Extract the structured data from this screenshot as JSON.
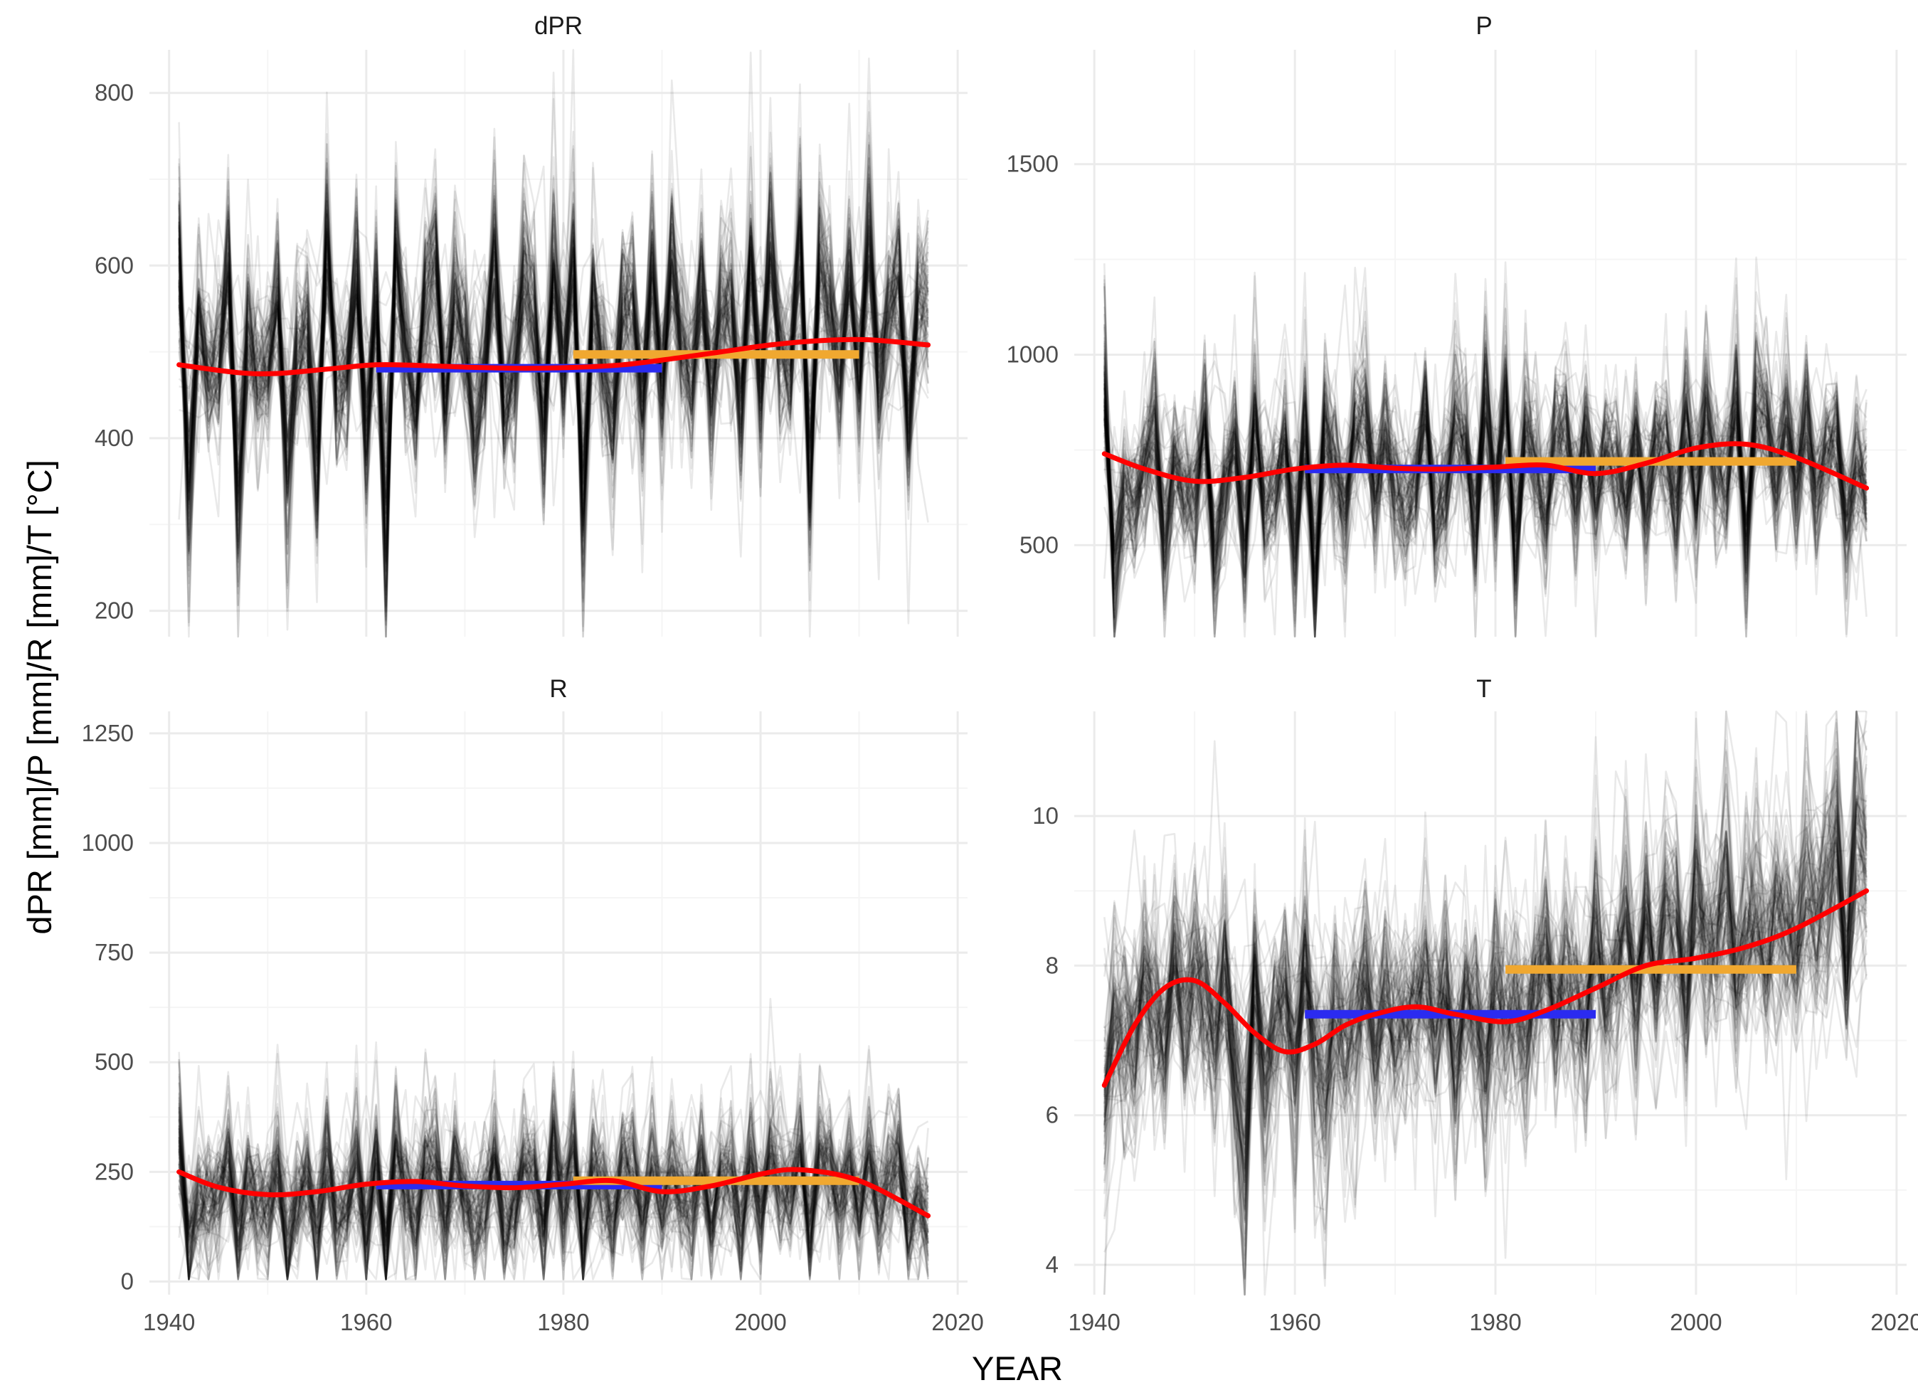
{
  "chart_data": {
    "type": "line",
    "xlabel": "YEAR",
    "ylabel": "dPR [mm]/P [mm]/R [mm]/T [°C]",
    "xlim": [
      1938,
      2021
    ],
    "x_ticks": [
      1940,
      1960,
      1980,
      2000,
      2020
    ],
    "x_tick_labels": [
      "1940",
      "1960",
      "1980",
      "2000",
      "2020"
    ],
    "years_range": [
      1941,
      2017
    ],
    "ensemble_members_approx": 100,
    "series_legend": {
      "ensemble": "individual ensemble members (semi-transparent black lines)",
      "smooth": "smoothed ensemble mean (red)",
      "ref_1961_1990": "1961–1990 mean (blue)",
      "ref_1981_2010": "1981–2010 mean (orange)"
    },
    "colors": {
      "ensemble": "#000000",
      "smooth": "#ff0000",
      "ref_1961_1990": "#2b2bf0",
      "ref_1981_2010": "#f0a830",
      "grid_major": "#ebebeb",
      "grid_minor": "#f5f5f5"
    },
    "panels": [
      {
        "title": "dPR",
        "ylim": [
          170,
          850
        ],
        "y_ticks": [
          200,
          400,
          600,
          800
        ],
        "y_tick_labels": [
          "200",
          "400",
          "600",
          "800"
        ],
        "show_x_labels": false,
        "ensemble_mean": [
          610,
          340,
          540,
          470,
          480,
          590,
          330,
          520,
          470,
          480,
          560,
          370,
          500,
          520,
          380,
          630,
          450,
          470,
          590,
          400,
          560,
          300,
          610,
          500,
          430,
          560,
          600,
          450,
          560,
          510,
          410,
          480,
          620,
          430,
          470,
          590,
          540,
          410,
          600,
          470,
          610,
          330,
          560,
          490,
          420,
          560,
          560,
          440,
          600,
          460,
          600,
          510,
          470,
          580,
          450,
          550,
          560,
          440,
          600,
          450,
          620,
          500,
          480,
          630,
          360,
          600,
          560,
          470,
          590,
          470,
          630,
          460,
          550,
          590,
          420,
          560,
          560
        ],
        "ensemble_spread": 55,
        "smooth": {
          "x": [
            1941,
            1947,
            1951,
            1956,
            1961,
            1966,
            1971,
            1976,
            1981,
            1986,
            1991,
            1996,
            2001,
            2006,
            2011,
            2017
          ],
          "y": [
            485,
            476,
            475,
            480,
            485,
            484,
            482,
            481,
            482,
            485,
            492,
            500,
            508,
            513,
            514,
            508
          ]
        },
        "ref_1961_1990": {
          "x": [
            1961,
            1990
          ],
          "y": 481
        },
        "ref_1981_2010": {
          "x": [
            1981,
            2010
          ],
          "y": 497
        }
      },
      {
        "title": "P",
        "ylim": [
          260,
          1800
        ],
        "y_ticks": [
          500,
          1000,
          1500
        ],
        "y_tick_labels": [
          "500",
          "1000",
          "1500"
        ],
        "show_x_labels": false,
        "ensemble_mean": [
          900,
          450,
          640,
          620,
          700,
          820,
          520,
          720,
          640,
          620,
          800,
          470,
          650,
          760,
          530,
          820,
          600,
          660,
          780,
          520,
          800,
          430,
          800,
          700,
          600,
          800,
          820,
          620,
          780,
          660,
          580,
          660,
          840,
          580,
          650,
          820,
          760,
          560,
          880,
          620,
          860,
          500,
          780,
          700,
          600,
          780,
          800,
          620,
          800,
          640,
          760,
          700,
          620,
          800,
          610,
          760,
          760,
          600,
          820,
          640,
          860,
          700,
          680,
          880,
          520,
          860,
          800,
          660,
          820,
          640,
          840,
          640,
          760,
          800,
          560,
          700,
          660
        ],
        "ensemble_spread": 110,
        "smooth": {
          "x": [
            1941,
            1945,
            1950,
            1955,
            1960,
            1965,
            1970,
            1975,
            1980,
            1985,
            1990,
            1995,
            2000,
            2005,
            2010,
            2017
          ],
          "y": [
            740,
            700,
            668,
            678,
            700,
            710,
            702,
            700,
            705,
            710,
            688,
            715,
            755,
            765,
            730,
            650
          ]
        },
        "ref_1961_1990": {
          "x": [
            1961,
            1990
          ],
          "y": 700
        },
        "ref_1981_2010": {
          "x": [
            1981,
            2010
          ],
          "y": 720
        }
      },
      {
        "title": "R",
        "ylim": [
          -30,
          1300
        ],
        "y_ticks": [
          0,
          250,
          500,
          750,
          1000,
          1250
        ],
        "y_tick_labels": [
          "0",
          "250",
          "500",
          "750",
          "1000",
          "1250"
        ],
        "show_x_labels": true,
        "ensemble_mean": [
          320,
          80,
          200,
          170,
          210,
          270,
          110,
          220,
          170,
          160,
          250,
          90,
          180,
          230,
          110,
          270,
          140,
          170,
          260,
          100,
          260,
          70,
          290,
          210,
          150,
          260,
          280,
          150,
          260,
          200,
          130,
          180,
          290,
          130,
          170,
          260,
          240,
          120,
          310,
          170,
          290,
          90,
          250,
          210,
          150,
          250,
          260,
          150,
          260,
          170,
          240,
          190,
          160,
          260,
          140,
          240,
          250,
          140,
          270,
          160,
          290,
          210,
          190,
          300,
          110,
          290,
          260,
          170,
          270,
          160,
          280,
          170,
          240,
          270,
          120,
          170,
          150
        ],
        "ensemble_spread": 90,
        "smooth": {
          "x": [
            1941,
            1945,
            1950,
            1955,
            1960,
            1965,
            1970,
            1975,
            1980,
            1985,
            1990,
            1995,
            2000,
            2004,
            2010,
            2017
          ],
          "y": [
            250,
            215,
            198,
            205,
            222,
            228,
            218,
            214,
            222,
            230,
            205,
            218,
            245,
            255,
            230,
            150
          ]
        },
        "ref_1961_1990": {
          "x": [
            1961,
            1990
          ],
          "y": 220
        },
        "ref_1981_2010": {
          "x": [
            1981,
            2010
          ],
          "y": 230
        }
      },
      {
        "title": "T",
        "ylim": [
          3.6,
          11.4
        ],
        "y_ticks": [
          4,
          6,
          8,
          10
        ],
        "y_tick_labels": [
          "4",
          "6",
          "8",
          "10"
        ],
        "show_x_labels": true,
        "ensemble_mean": [
          6.3,
          7.3,
          7.1,
          6.9,
          7.8,
          7.4,
          7.2,
          8.2,
          7.3,
          8.0,
          7.6,
          7.0,
          7.9,
          6.6,
          5.5,
          7.8,
          6.5,
          7.2,
          7.6,
          6.7,
          8.0,
          6.8,
          6.4,
          7.4,
          6.9,
          7.2,
          7.8,
          7.0,
          7.6,
          7.1,
          7.3,
          7.4,
          7.8,
          7.1,
          7.6,
          6.8,
          7.5,
          7.4,
          6.7,
          7.8,
          7.2,
          7.4,
          7.0,
          7.8,
          8.2,
          7.3,
          7.9,
          7.6,
          7.3,
          8.4,
          7.6,
          7.9,
          8.5,
          7.7,
          8.6,
          7.9,
          8.7,
          8.6,
          7.6,
          8.9,
          8.3,
          8.4,
          9.1,
          7.9,
          8.4,
          8.8,
          8.1,
          8.7,
          8.6,
          8.1,
          9.1,
          8.6,
          8.9,
          9.6,
          8.0,
          9.6,
          9.3
        ],
        "ensemble_spread": 0.75,
        "smooth": {
          "x": [
            1941,
            1944,
            1947,
            1950,
            1953,
            1956,
            1959,
            1962,
            1965,
            1968,
            1972,
            1976,
            1981,
            1985,
            1990,
            1995,
            2000,
            2005,
            2010,
            2017
          ],
          "y": [
            6.4,
            7.2,
            7.7,
            7.8,
            7.5,
            7.1,
            6.85,
            6.95,
            7.2,
            7.35,
            7.45,
            7.35,
            7.25,
            7.4,
            7.7,
            8.0,
            8.1,
            8.25,
            8.5,
            9.0
          ]
        },
        "ref_1961_1990": {
          "x": [
            1961,
            1990
          ],
          "y": 7.35
        },
        "ref_1981_2010": {
          "x": [
            1981,
            2010
          ],
          "y": 7.95
        }
      }
    ]
  }
}
